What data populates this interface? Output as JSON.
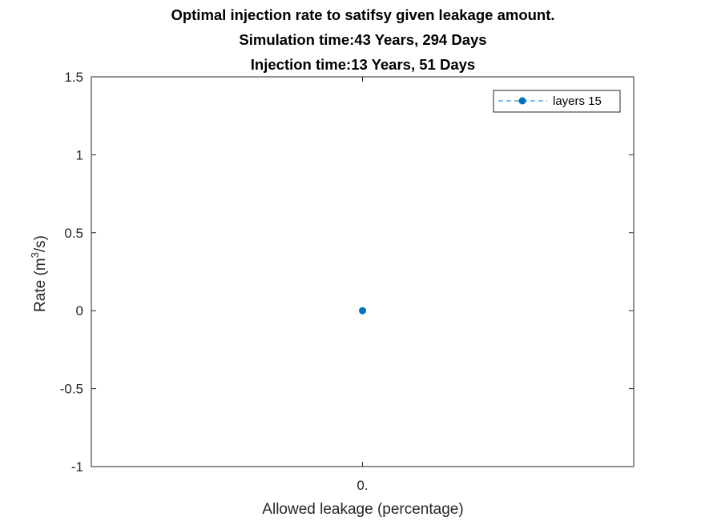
{
  "chart_data": {
    "type": "line",
    "title": [
      "Optimal injection rate to satifsy given leakage amount.",
      "Simulation time:43 Years, 294 Days",
      "Injection time:13 Years, 51 Days"
    ],
    "xlabel": "Allowed leakage (percentage)",
    "ylabel_main": "Rate (m",
    "ylabel_sup": "3",
    "ylabel_end": "/s)",
    "xlim": [
      -1,
      1
    ],
    "ylim": [
      -1,
      1.5
    ],
    "x_ticks": [
      0
    ],
    "x_tick_labels": [
      "0."
    ],
    "y_ticks": [
      -1,
      -0.5,
      0,
      0.5,
      1,
      1.5
    ],
    "y_tick_labels": [
      "-1",
      "-0.5",
      "0",
      "0.5",
      "1",
      "1.5"
    ],
    "grid": false,
    "legend_position": "top-right",
    "series": [
      {
        "name": "layers 15",
        "color": "#0072BD",
        "line_style": "dashed",
        "marker": "dot",
        "x": [
          0
        ],
        "y": [
          0
        ]
      }
    ]
  }
}
